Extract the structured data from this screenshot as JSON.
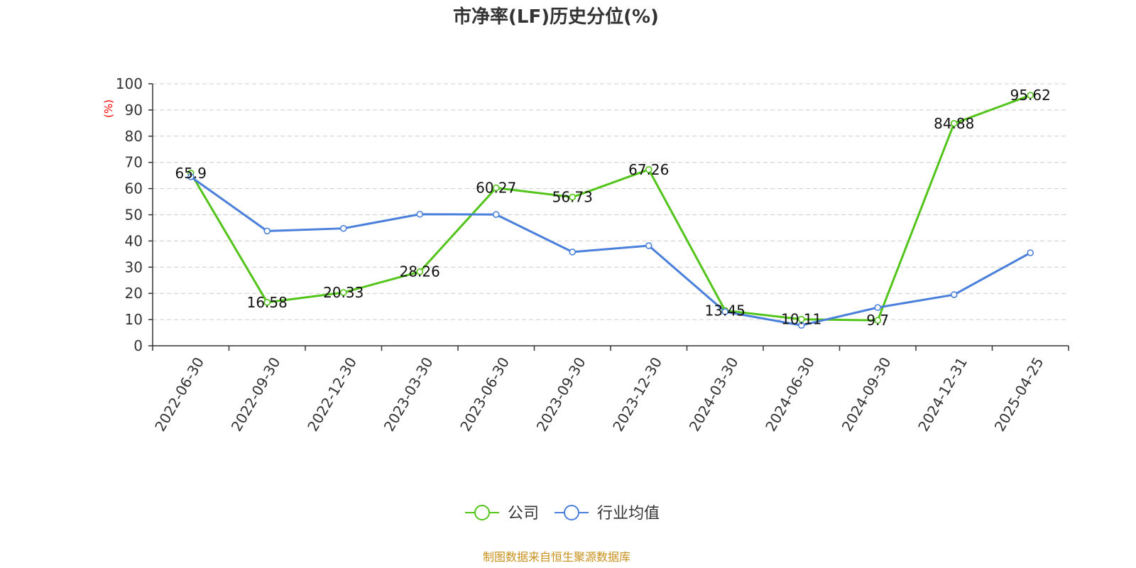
{
  "colors": {
    "company": "#52c41a",
    "industry": "#4a7fdb",
    "footer": "#c8901c",
    "unit": "#ff0000"
  },
  "chart_data": {
    "type": "line",
    "title": "市净率(LF)历史分位(%)",
    "ylabel": "(%)",
    "ylim": [
      0,
      100
    ],
    "yticks": [
      0,
      10,
      20,
      30,
      40,
      50,
      60,
      70,
      80,
      90,
      100
    ],
    "grid": true,
    "legend_position": "bottom-center",
    "categories": [
      "2022-06-30",
      "2022-09-30",
      "2022-12-30",
      "2023-03-30",
      "2023-06-30",
      "2023-09-30",
      "2023-12-30",
      "2024-03-30",
      "2024-06-30",
      "2024-09-30",
      "2024-12-31",
      "2025-04-25"
    ],
    "series": [
      {
        "name": "公司",
        "color": "#52c41a",
        "values": [
          65.9,
          16.58,
          20.33,
          28.26,
          60.27,
          56.73,
          67.26,
          13.45,
          10.11,
          9.7,
          84.88,
          95.62
        ],
        "labels": [
          "65.9",
          "16.58",
          "20.33",
          "28.26",
          "60.27",
          "56.73",
          "67.26",
          "13.45",
          "10.11",
          "9.7",
          "84.88",
          "95.62"
        ]
      },
      {
        "name": "行业均值",
        "color": "#4a7fdb",
        "values": [
          64.5,
          43.8,
          44.8,
          50.2,
          50.1,
          35.8,
          38.2,
          13.0,
          7.8,
          14.6,
          19.5,
          35.5
        ]
      }
    ],
    "source": "制图数据来自恒生聚源数据库"
  }
}
